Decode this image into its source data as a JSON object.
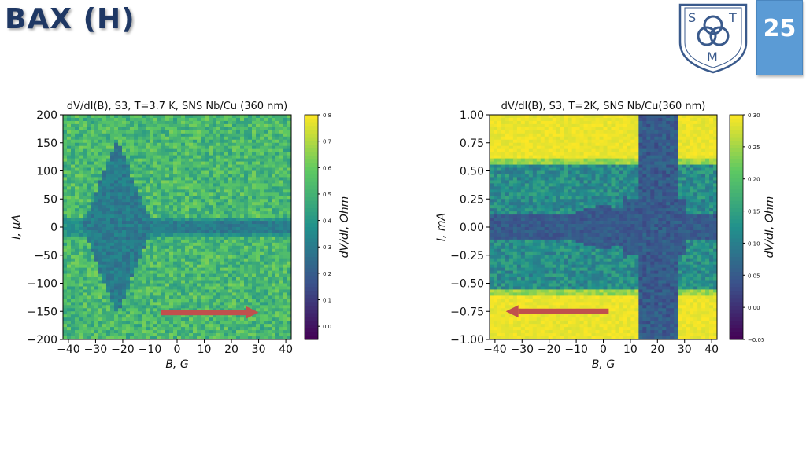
{
  "slide": {
    "title": "ВАХ (Н)",
    "page_number": "25",
    "logo": {
      "letters": [
        "S",
        "T",
        "M"
      ]
    }
  },
  "colors": {
    "title": "#1f3864",
    "page_box": "#5b9bd5",
    "arrow": "#c0504d",
    "viridis": [
      "#440154",
      "#3b528b",
      "#21918c",
      "#5ec962",
      "#fde725"
    ]
  },
  "chart_data": [
    {
      "type": "heatmap",
      "title": "dV/dI(B), S3, T=3.7 K, SNS Nb/Cu (360 nm)",
      "xlabel": "B, G",
      "ylabel": "I, μA",
      "xlim": [
        -42,
        42
      ],
      "ylim": [
        -200,
        200
      ],
      "xticks": [
        -40,
        -30,
        -20,
        -10,
        0,
        10,
        20,
        30,
        40
      ],
      "yticks": [
        200,
        150,
        100,
        50,
        0,
        -50,
        -100,
        -150,
        -200
      ],
      "colorbar": {
        "label": "dV/dI, Ohm",
        "min": -0.05,
        "max": 0.8,
        "ticks": [
          "0.8",
          "0.7",
          "0.6",
          "0.5",
          "0.4",
          "0.3",
          "0.2",
          "0.1",
          "0.0"
        ],
        "tick_values": [
          0.8,
          0.7,
          0.6,
          0.5,
          0.4,
          0.3,
          0.2,
          0.1,
          0.0
        ]
      },
      "features": {
        "diamond": {
          "center_B": -22,
          "half_width_B": 13,
          "half_height_I": 155,
          "value": 0.3
        },
        "zero_band": {
          "I_half_width": 10,
          "value": 0.3
        },
        "background_value": 0.52
      },
      "sweep_arrow": {
        "from_B": -6,
        "to_B": 30,
        "at_I": -152,
        "direction": "right"
      }
    },
    {
      "type": "heatmap",
      "title": "dV/dI(B), S3, T=2K, SNS Nb/Cu(360 nm)",
      "xlabel": "B, G",
      "ylabel": "I, mA",
      "xlim": [
        -42,
        42
      ],
      "ylim": [
        -1.0,
        1.0
      ],
      "xticks": [
        -40,
        -30,
        -20,
        -10,
        0,
        10,
        20,
        30,
        40
      ],
      "yticks": [
        "1.00",
        "0.75",
        "0.50",
        "0.25",
        "0.00",
        "-0.25",
        "-0.50",
        "-0.75",
        "-1.00"
      ],
      "ytick_values": [
        1.0,
        0.75,
        0.5,
        0.25,
        0.0,
        -0.25,
        -0.5,
        -0.75,
        -1.0
      ],
      "colorbar": {
        "label": "dV/dI, Ohm",
        "min": -0.05,
        "max": 0.3,
        "ticks": [
          "0.30",
          "0.25",
          "0.20",
          "0.15",
          "0.10",
          "0.05",
          "0.00",
          "−0.05"
        ],
        "tick_values": [
          0.3,
          0.25,
          0.2,
          0.15,
          0.1,
          0.05,
          0.0,
          -0.05
        ]
      },
      "features": {
        "high_edge_I": 0.62,
        "mid_band_value": 0.12,
        "center_band_value": 0.05,
        "high_value": 0.3,
        "vertical_band_B": [
          13,
          28
        ]
      },
      "sweep_arrow": {
        "from_B": 2,
        "to_B": -36,
        "at_I": -0.75,
        "direction": "left"
      }
    }
  ]
}
